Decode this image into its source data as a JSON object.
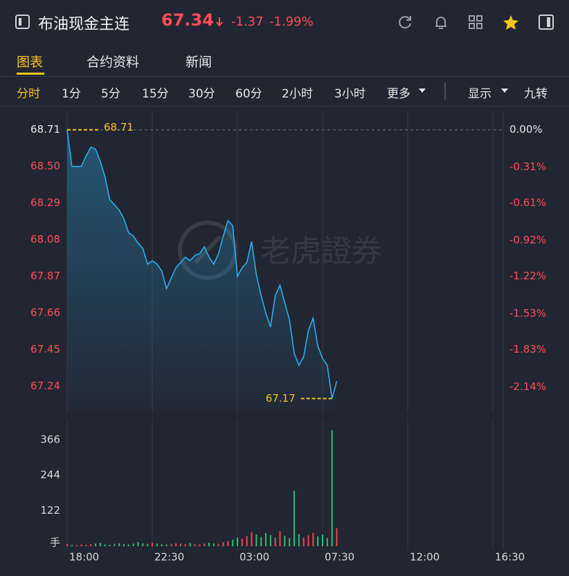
{
  "header": {
    "title": "布油现金主连",
    "price": "67.34",
    "change": "-1.37",
    "change_pct": "-1.99%"
  },
  "tabs": [
    "图表",
    "合约资料",
    "新闻"
  ],
  "toolbar": {
    "periods": [
      "分时",
      "1分",
      "5分",
      "15分",
      "30分",
      "60分",
      "2小时",
      "3小时"
    ],
    "more": "更多",
    "display": "显示",
    "nine": "九转"
  },
  "chart_data": [
    {
      "type": "line",
      "watermark": "老虎證券",
      "color": "#29b0ef",
      "fill": true,
      "grid": true,
      "x": [
        "18:00",
        "18:15",
        "18:30",
        "18:45",
        "19:00",
        "19:15",
        "19:30",
        "19:45",
        "20:00",
        "20:15",
        "20:30",
        "20:45",
        "21:00",
        "21:15",
        "21:30",
        "21:45",
        "22:00",
        "22:15",
        "22:30",
        "22:45",
        "23:00",
        "23:15",
        "23:30",
        "23:45",
        "00:00",
        "00:15",
        "00:30",
        "00:45",
        "01:00",
        "01:15",
        "01:30",
        "01:45",
        "02:00",
        "02:15",
        "02:30",
        "02:45",
        "03:00",
        "03:15",
        "03:30",
        "03:45",
        "04:00",
        "04:15",
        "04:30",
        "04:45",
        "05:00",
        "05:15",
        "05:30",
        "05:45",
        "06:00",
        "06:15",
        "06:30",
        "06:45",
        "07:00",
        "07:15",
        "07:30",
        "07:45",
        "08:00",
        "08:15"
      ],
      "values": [
        68.71,
        68.5,
        68.5,
        68.5,
        68.56,
        68.61,
        68.6,
        68.53,
        68.44,
        68.31,
        68.28,
        68.25,
        68.2,
        68.12,
        68.1,
        68.06,
        68.03,
        67.94,
        67.96,
        67.94,
        67.9,
        67.8,
        67.86,
        67.92,
        67.95,
        67.98,
        67.96,
        67.99,
        68.0,
        68.04,
        67.98,
        67.94,
        68.0,
        68.1,
        68.19,
        68.16,
        67.87,
        67.92,
        67.95,
        68.07,
        67.88,
        67.76,
        67.66,
        67.58,
        67.76,
        67.82,
        67.72,
        67.62,
        67.43,
        67.36,
        67.41,
        67.56,
        67.63,
        67.47,
        67.4,
        67.36,
        67.17,
        67.27
      ],
      "xlim": [
        "18:00",
        "16:30"
      ],
      "ylim": [
        67.1,
        68.8
      ],
      "yticks": [
        68.71,
        {
          "value": 68.5,
          "label": "68.50"
        },
        68.29,
        68.08,
        67.87,
        67.66,
        67.45,
        67.24
      ],
      "y2lim": [
        -2.34,
        0.13
      ],
      "y2ticks": [
        {
          "value": 0,
          "label": "0.00%"
        },
        {
          "value": -0.31,
          "label": "-0.31%"
        },
        {
          "value": -0.61,
          "label": "-0.61%"
        },
        {
          "value": -0.92,
          "label": "-0.92%"
        },
        {
          "value": -1.22,
          "label": "-1.22%"
        },
        {
          "value": -1.53,
          "label": "-1.53%"
        },
        {
          "value": -1.83,
          "label": "-1.83%"
        },
        {
          "value": -2.14,
          "label": "-2.14%"
        }
      ],
      "reference": 68.71,
      "high": 68.71,
      "low": 67.17
    },
    {
      "type": "bar",
      "up_color": "#f0444c",
      "down_color": "#2ebd6e",
      "values": [
        8,
        5,
        4,
        6,
        5,
        7,
        9,
        12,
        6,
        5,
        8,
        10,
        7,
        6,
        9,
        14,
        10,
        8,
        12,
        9,
        7,
        6,
        8,
        10,
        9,
        7,
        11,
        8,
        6,
        9,
        12,
        10,
        8,
        14,
        18,
        22,
        30,
        26,
        35,
        48,
        40,
        32,
        45,
        38,
        30,
        52,
        36,
        28,
        190,
        42,
        30,
        38,
        46,
        34,
        40,
        28,
        398,
        62
      ],
      "xlim": [
        "18:00",
        "16:30"
      ],
      "xticks": [
        "18:00",
        "22:30",
        "03:00",
        "07:30",
        "12:00",
        "16:30"
      ],
      "ylim": [
        0,
        420
      ],
      "yticks": [
        {
          "value": 0,
          "label": "手"
        },
        122,
        244,
        366
      ]
    }
  ]
}
